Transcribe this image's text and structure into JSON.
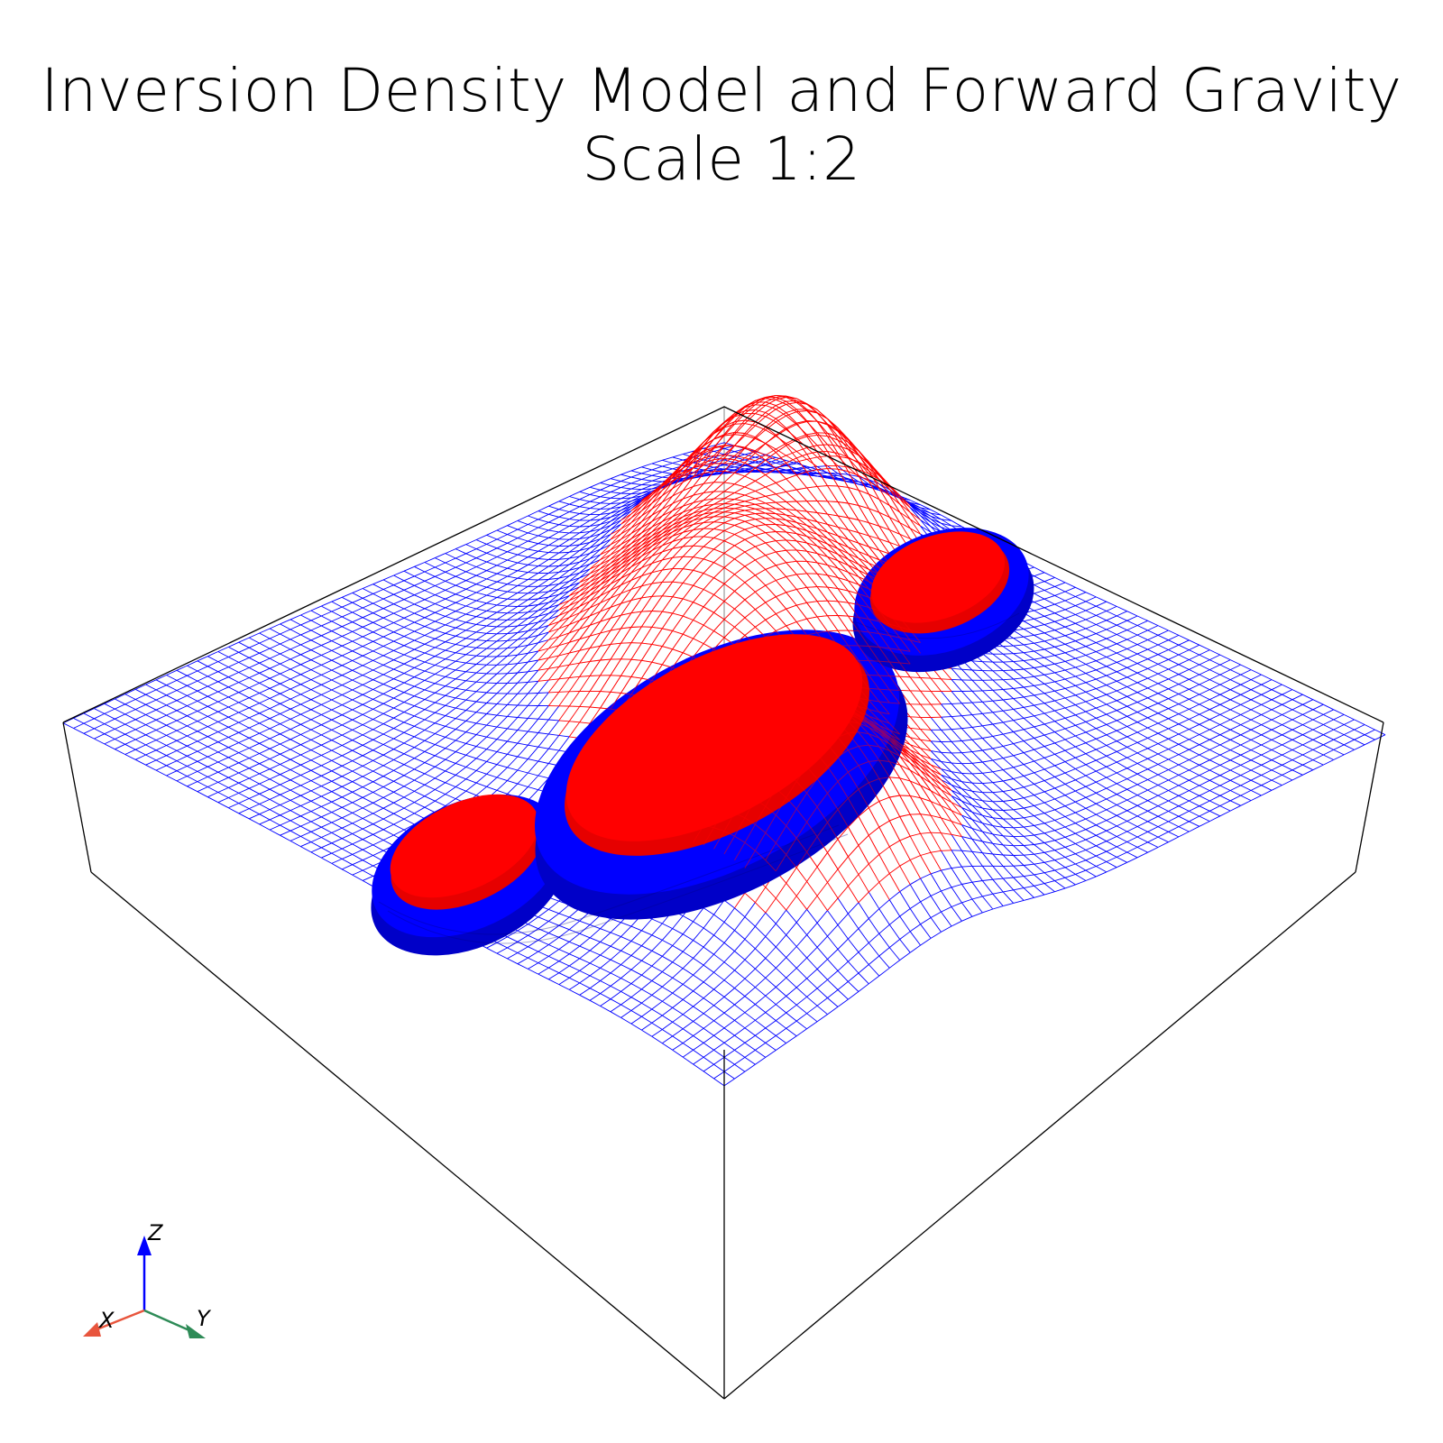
{
  "title": {
    "line1": "Inversion Density Model and Forward Gravity",
    "line2": "Scale 1:2"
  },
  "colors": {
    "background": "#ffffff",
    "bounding_box": "#000000",
    "mesh_negative": "#0000ff",
    "mesh_positive": "#ff0000",
    "density_core": "#ff0000",
    "density_shell": "#0000ff",
    "axis_x": "#e8553d",
    "axis_y": "#2e8b57",
    "axis_z": "#0000ff"
  },
  "orientation_axes": {
    "x_label": "X",
    "y_label": "Y",
    "z_label": "Z"
  }
}
